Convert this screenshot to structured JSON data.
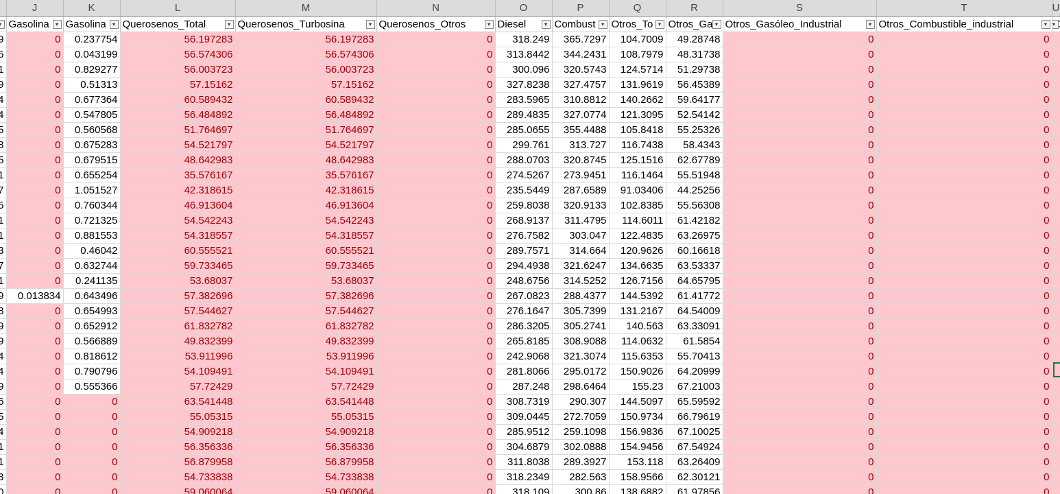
{
  "sheet": {
    "columns": [
      {
        "letter": "I",
        "header": ""
      },
      {
        "letter": "J",
        "header": "Gasolina"
      },
      {
        "letter": "K",
        "header": "Gasolina"
      },
      {
        "letter": "L",
        "header": "Querosenos_Total"
      },
      {
        "letter": "M",
        "header": "Querosenos_Turbosina"
      },
      {
        "letter": "N",
        "header": "Querosenos_Otros"
      },
      {
        "letter": "O",
        "header": "Diesel"
      },
      {
        "letter": "P",
        "header": "Combust"
      },
      {
        "letter": "Q",
        "header": "Otros_To"
      },
      {
        "letter": "R",
        "header": "Otros_Ga"
      },
      {
        "letter": "S",
        "header": "Otros_Gasóleo_Industrial"
      },
      {
        "letter": "T",
        "header": "Otros_Combustible_industrial"
      },
      {
        "letter": "U",
        "header": "O"
      }
    ],
    "rows": [
      [
        "9",
        "0",
        "0.237754",
        "56.197283",
        "56.197283",
        "0",
        "318.249",
        "365.7297",
        "104.7009",
        "49.28748",
        "0",
        "0",
        ""
      ],
      [
        "5",
        "0",
        "0.043199",
        "56.574306",
        "56.574306",
        "0",
        "313.8442",
        "344.2431",
        "108.7979",
        "48.31738",
        "0",
        "0",
        ""
      ],
      [
        "1",
        "0",
        "0.829277",
        "56.003723",
        "56.003723",
        "0",
        "300.096",
        "320.5743",
        "124.5714",
        "51.29738",
        "0",
        "0",
        ""
      ],
      [
        "9",
        "0",
        "0.51313",
        "57.15162",
        "57.15162",
        "0",
        "327.8238",
        "327.4757",
        "131.9619",
        "56.45389",
        "0",
        "0",
        ""
      ],
      [
        "4",
        "0",
        "0.677364",
        "60.589432",
        "60.589432",
        "0",
        "283.5965",
        "310.8812",
        "140.2662",
        "59.64177",
        "0",
        "0",
        ""
      ],
      [
        "4",
        "0",
        "0.547805",
        "56.484892",
        "56.484892",
        "0",
        "289.4835",
        "327.0774",
        "121.3095",
        "52.54142",
        "0",
        "0",
        ""
      ],
      [
        "5",
        "0",
        "0.560568",
        "51.764697",
        "51.764697",
        "0",
        "285.0655",
        "355.4488",
        "105.8418",
        "55.25326",
        "0",
        "0",
        ""
      ],
      [
        "8",
        "0",
        "0.675283",
        "54.521797",
        "54.521797",
        "0",
        "299.761",
        "313.727",
        "116.7438",
        "58.4343",
        "0",
        "0",
        ""
      ],
      [
        "5",
        "0",
        "0.679515",
        "48.642983",
        "48.642983",
        "0",
        "288.0703",
        "320.8745",
        "125.1516",
        "62.67789",
        "0",
        "0",
        ""
      ],
      [
        "1",
        "0",
        "0.655254",
        "35.576167",
        "35.576167",
        "0",
        "274.5267",
        "273.9451",
        "116.1464",
        "55.51948",
        "0",
        "0",
        ""
      ],
      [
        "7",
        "0",
        "1.051527",
        "42.318615",
        "42.318615",
        "0",
        "235.5449",
        "287.6589",
        "91.03406",
        "44.25256",
        "0",
        "0",
        ""
      ],
      [
        "5",
        "0",
        "0.760344",
        "46.913604",
        "46.913604",
        "0",
        "259.8038",
        "320.9133",
        "102.8385",
        "55.56308",
        "0",
        "0",
        ""
      ],
      [
        "1",
        "0",
        "0.721325",
        "54.542243",
        "54.542243",
        "0",
        "268.9137",
        "311.4795",
        "114.6011",
        "61.42182",
        "0",
        "0",
        ""
      ],
      [
        "1",
        "0",
        "0.881553",
        "54.318557",
        "54.318557",
        "0",
        "276.7582",
        "303.047",
        "122.4835",
        "63.26975",
        "0",
        "0",
        ""
      ],
      [
        "3",
        "0",
        "0.46042",
        "60.555521",
        "60.555521",
        "0",
        "289.7571",
        "314.664",
        "120.9626",
        "60.16618",
        "0",
        "0",
        ""
      ],
      [
        "7",
        "0",
        "0.632744",
        "59.733465",
        "59.733465",
        "0",
        "294.4938",
        "321.6247",
        "134.6635",
        "63.53337",
        "0",
        "0",
        ""
      ],
      [
        "1",
        "0",
        "0.241135",
        "53.68037",
        "53.68037",
        "0",
        "248.6756",
        "314.5252",
        "126.7156",
        "64.65795",
        "0",
        "0",
        ""
      ],
      [
        "9",
        "0.013834",
        "0.643496",
        "57.382696",
        "57.382696",
        "0",
        "267.0823",
        "288.4377",
        "144.5392",
        "61.41772",
        "0",
        "0",
        ""
      ],
      [
        "8",
        "0",
        "0.654993",
        "57.544627",
        "57.544627",
        "0",
        "276.1647",
        "305.7399",
        "131.2167",
        "64.54009",
        "0",
        "0",
        ""
      ],
      [
        "9",
        "0",
        "0.652912",
        "61.832782",
        "61.832782",
        "0",
        "286.3205",
        "305.2741",
        "140.563",
        "63.33091",
        "0",
        "0",
        ""
      ],
      [
        "9",
        "0",
        "0.566889",
        "49.832399",
        "49.832399",
        "0",
        "265.8185",
        "308.9088",
        "114.0632",
        "61.5854",
        "0",
        "0",
        ""
      ],
      [
        "4",
        "0",
        "0.818612",
        "53.911996",
        "53.911996",
        "0",
        "242.9068",
        "321.3074",
        "115.6353",
        "55.70413",
        "0",
        "0",
        ""
      ],
      [
        "4",
        "0",
        "0.790796",
        "54.109491",
        "54.109491",
        "0",
        "281.8066",
        "295.0172",
        "150.9026",
        "64.20999",
        "0",
        "0",
        ""
      ],
      [
        "9",
        "0",
        "0.555366",
        "57.72429",
        "57.72429",
        "0",
        "287.248",
        "298.6464",
        "155.23",
        "67.21003",
        "0",
        "0",
        ""
      ],
      [
        "6",
        "0",
        "0",
        "63.541448",
        "63.541448",
        "0",
        "308.7319",
        "290.307",
        "144.5097",
        "65.59592",
        "0",
        "0",
        ""
      ],
      [
        "5",
        "0",
        "0",
        "55.05315",
        "55.05315",
        "0",
        "309.0445",
        "272.7059",
        "150.9734",
        "66.79619",
        "0",
        "0",
        ""
      ],
      [
        "4",
        "0",
        "0",
        "54.909218",
        "54.909218",
        "0",
        "285.9512",
        "259.1098",
        "156.9836",
        "67.10025",
        "0",
        "0",
        ""
      ],
      [
        "1",
        "0",
        "0",
        "56.356336",
        "56.356336",
        "0",
        "304.6879",
        "302.0888",
        "154.9456",
        "67.54924",
        "0",
        "0",
        ""
      ],
      [
        "1",
        "0",
        "0",
        "56.879958",
        "56.879958",
        "0",
        "311.8038",
        "289.3927",
        "153.118",
        "63.26409",
        "0",
        "0",
        ""
      ],
      [
        "3",
        "0",
        "0",
        "54.733838",
        "54.733838",
        "0",
        "318.2349",
        "282.563",
        "158.9566",
        "62.30121",
        "0",
        "0",
        ""
      ],
      [
        "0",
        "0",
        "0",
        "59.060064",
        "59.060064",
        "0",
        "318.109",
        "300.86",
        "138.6882",
        "61.97856",
        "0",
        "0",
        ""
      ]
    ]
  },
  "colors": {
    "pink_fill": "#ffc7ce",
    "pink_text": "#9c0006",
    "header_bg": "#dcdcdc"
  },
  "icons": {
    "filter": "filter-dropdown-icon"
  }
}
